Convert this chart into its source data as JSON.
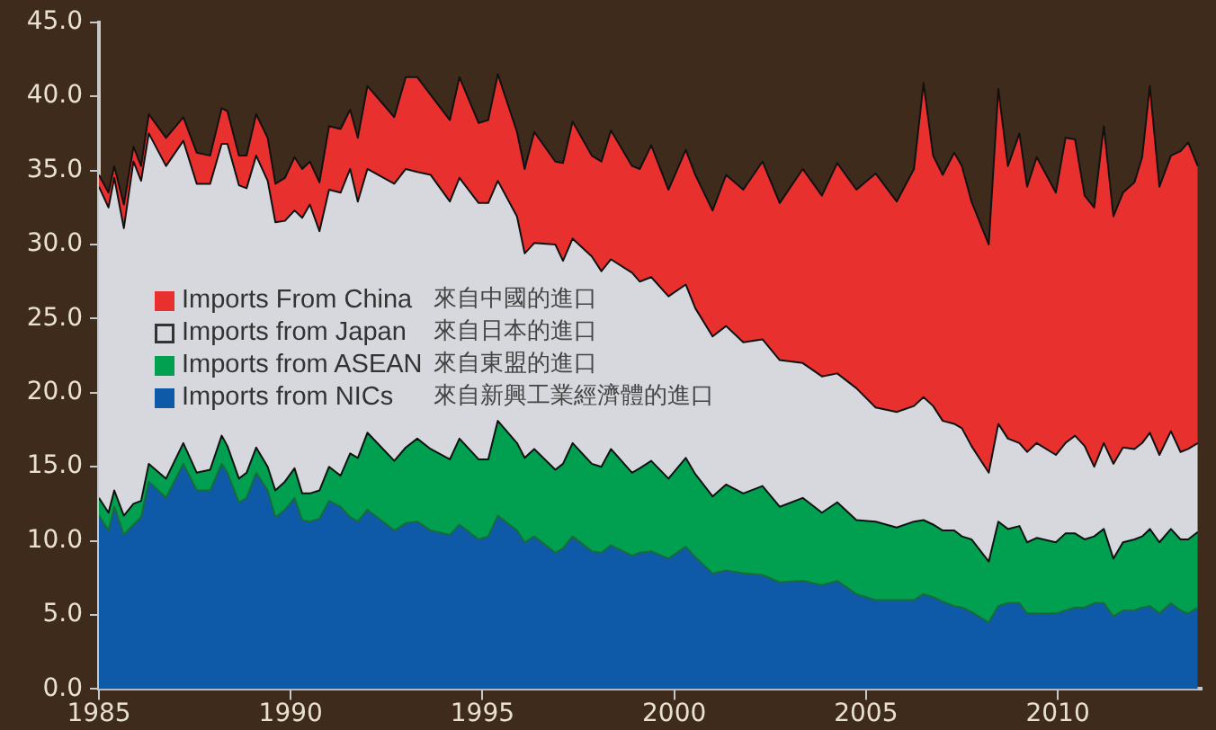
{
  "chart_data": {
    "type": "area",
    "stacked": true,
    "legend": "left",
    "grid": false,
    "x": [
      1985.0,
      1985.25,
      1985.4,
      1985.65,
      1985.9,
      1986.1,
      1986.3,
      1986.75,
      1987.2,
      1987.55,
      1987.9,
      1988.2,
      1988.35,
      1988.65,
      1988.85,
      1989.1,
      1989.4,
      1989.6,
      1989.85,
      1990.1,
      1990.3,
      1990.5,
      1990.75,
      1991.0,
      1991.3,
      1991.55,
      1991.75,
      1992.0,
      1992.7,
      1993.0,
      1993.3,
      1993.65,
      1994.15,
      1994.4,
      1994.9,
      1995.15,
      1995.4,
      1995.9,
      1996.1,
      1996.35,
      1996.9,
      1997.1,
      1997.35,
      1997.85,
      1998.1,
      1998.35,
      1998.9,
      1999.1,
      1999.4,
      1999.85,
      2000.3,
      2000.55,
      2001.0,
      2001.35,
      2001.8,
      2002.3,
      2002.75,
      2003.35,
      2003.85,
      2004.25,
      2004.75,
      2005.25,
      2005.8,
      2006.25,
      2006.5,
      2006.75,
      2007.0,
      2007.3,
      2007.5,
      2007.75,
      2008.2,
      2008.45,
      2008.7,
      2009.0,
      2009.2,
      2009.45,
      2009.95,
      2010.2,
      2010.45,
      2010.7,
      2010.95,
      2011.2,
      2011.45,
      2011.7,
      2012.0,
      2012.2,
      2012.4,
      2012.65,
      2012.95,
      2013.2,
      2013.4,
      2013.65
    ],
    "series": [
      {
        "name": "Imports from NICs 來自新興工業經濟體的進口",
        "color": "#0e5aa8",
        "values": [
          11.7,
          10.7,
          12.3,
          10.4,
          11.1,
          11.6,
          14.0,
          12.9,
          15.2,
          13.4,
          13.4,
          15.2,
          14.6,
          12.6,
          12.9,
          14.6,
          13.4,
          11.6,
          12.1,
          12.9,
          11.4,
          11.3,
          11.5,
          12.7,
          12.3,
          11.6,
          11.3,
          12.1,
          10.7,
          11.2,
          11.3,
          10.7,
          10.4,
          11.1,
          10.1,
          10.3,
          11.7,
          10.7,
          9.9,
          10.3,
          9.2,
          9.5,
          10.3,
          9.3,
          9.2,
          9.7,
          9.0,
          9.2,
          9.3,
          8.8,
          9.6,
          8.9,
          7.8,
          8.0,
          7.8,
          7.7,
          7.2,
          7.3,
          7.0,
          7.3,
          6.4,
          6.0,
          6.0,
          6.0,
          6.4,
          6.2,
          5.9,
          5.6,
          5.5,
          5.2,
          4.5,
          5.6,
          5.8,
          5.8,
          5.1,
          5.1,
          5.1,
          5.3,
          5.5,
          5.5,
          5.8,
          5.8,
          4.9,
          5.3,
          5.3,
          5.5,
          5.6,
          5.1,
          5.8,
          5.3,
          5.1,
          5.5
        ]
      },
      {
        "name": "Imports from ASEAN 來自東盟的進口",
        "color": "#00a050",
        "values": [
          1.2,
          1.2,
          1.1,
          1.3,
          1.4,
          1.1,
          1.2,
          1.3,
          1.4,
          1.2,
          1.4,
          1.9,
          1.8,
          1.6,
          1.7,
          1.7,
          1.6,
          1.8,
          1.9,
          2.0,
          1.8,
          1.9,
          1.9,
          2.3,
          2.1,
          4.3,
          4.3,
          5.2,
          4.7,
          5.1,
          5.6,
          5.5,
          5.1,
          5.8,
          5.4,
          5.2,
          6.4,
          5.9,
          5.7,
          5.9,
          5.6,
          5.7,
          6.3,
          5.9,
          5.8,
          6.5,
          5.6,
          5.7,
          6.1,
          5.4,
          6.0,
          5.6,
          5.2,
          5.8,
          5.4,
          6.0,
          5.1,
          5.6,
          4.9,
          5.3,
          5.0,
          5.3,
          4.9,
          5.3,
          5.0,
          4.9,
          4.8,
          5.1,
          4.8,
          4.9,
          4.1,
          5.7,
          5.0,
          5.2,
          4.8,
          5.1,
          4.8,
          5.2,
          5.0,
          4.6,
          4.5,
          5.0,
          3.9,
          4.6,
          4.8,
          4.8,
          5.2,
          4.8,
          5.0,
          4.8,
          5.0,
          5.1
        ]
      },
      {
        "name": "Imports from Japan 來自日本的進口",
        "color": "#d6d8dd",
        "values": [
          21.0,
          20.6,
          21.1,
          19.4,
          23.1,
          21.6,
          22.3,
          21.1,
          20.4,
          19.5,
          19.3,
          19.7,
          20.4,
          19.8,
          19.2,
          19.7,
          19.3,
          18.1,
          17.6,
          17.4,
          18.6,
          19.5,
          17.5,
          18.7,
          19.1,
          19.2,
          17.3,
          17.8,
          18.7,
          18.8,
          18.0,
          18.5,
          17.4,
          17.6,
          17.3,
          17.3,
          16.2,
          15.3,
          13.8,
          13.9,
          15.2,
          13.7,
          13.8,
          14.0,
          13.2,
          12.8,
          13.5,
          12.6,
          12.4,
          12.3,
          11.7,
          11.2,
          10.8,
          10.7,
          10.2,
          9.9,
          9.9,
          9.1,
          9.2,
          8.7,
          8.9,
          7.7,
          7.8,
          7.8,
          8.3,
          8.0,
          7.4,
          7.2,
          7.3,
          6.3,
          6.0,
          6.6,
          6.1,
          5.6,
          6.1,
          6.4,
          5.9,
          6.1,
          6.6,
          6.3,
          4.7,
          5.8,
          6.4,
          6.4,
          6.1,
          6.3,
          6.5,
          5.9,
          6.6,
          5.9,
          6.1,
          6.0
        ]
      },
      {
        "name": "Imports From China 來自中國的進口",
        "color": "#e8312f",
        "values": [
          0.8,
          1.0,
          0.8,
          1.6,
          1.0,
          1.0,
          1.3,
          1.9,
          1.6,
          2.1,
          1.9,
          2.4,
          2.2,
          2.0,
          2.2,
          2.8,
          2.9,
          2.6,
          2.9,
          3.6,
          3.3,
          2.9,
          3.3,
          4.3,
          4.3,
          4.0,
          4.3,
          5.6,
          4.5,
          6.2,
          6.4,
          5.4,
          5.5,
          6.8,
          5.4,
          5.6,
          7.2,
          5.7,
          5.7,
          7.5,
          5.6,
          6.6,
          7.9,
          6.8,
          7.4,
          8.7,
          7.2,
          7.6,
          8.9,
          7.2,
          9.1,
          9.0,
          8.5,
          10.2,
          10.3,
          12.0,
          10.6,
          13.1,
          12.2,
          14.2,
          13.4,
          15.8,
          14.2,
          16.0,
          21.2,
          16.9,
          16.6,
          18.3,
          17.7,
          16.5,
          15.4,
          22.6,
          18.4,
          20.9,
          17.9,
          19.3,
          17.7,
          20.6,
          20.0,
          16.9,
          17.5,
          21.4,
          16.7,
          17.2,
          18.0,
          19.3,
          23.4,
          18.1,
          18.6,
          20.3,
          20.7,
          18.7
        ]
      }
    ],
    "xlim": [
      1985,
      2013.75
    ],
    "xticks": [
      1985,
      1990,
      1995,
      2000,
      2005,
      2010
    ],
    "ylim": [
      0,
      45
    ],
    "yticks": [
      {
        "value": 0,
        "label": "0.0"
      },
      {
        "value": 5,
        "label": "5.0"
      },
      {
        "value": 10,
        "label": "10.0"
      },
      {
        "value": 15,
        "label": "15.0"
      },
      {
        "value": 20,
        "label": "20.0"
      },
      {
        "value": 25,
        "label": "25.0"
      },
      {
        "value": 30,
        "label": "30.0"
      },
      {
        "value": 35,
        "label": "35.0"
      },
      {
        "value": 40,
        "label": "40.0"
      },
      {
        "value": 45,
        "label": "45.0"
      }
    ]
  }
}
